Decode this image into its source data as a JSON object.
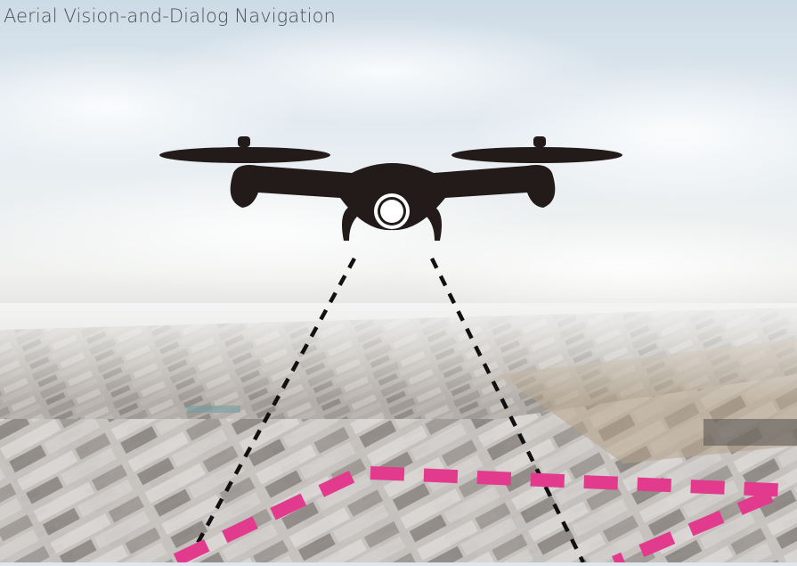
{
  "title": "Aerial Vision-and-Dialog Navigation",
  "icons": {
    "drone": "drone-icon",
    "camera": "camera-icon"
  },
  "colors": {
    "sky_top": "#cfdde8",
    "sky_mid": "#eef2f5",
    "haze": "#e9ebec",
    "ground": "#a9a4a0",
    "drone": "#231a1a",
    "view_cone": "#111111",
    "trajectory": "#e23b8e"
  }
}
